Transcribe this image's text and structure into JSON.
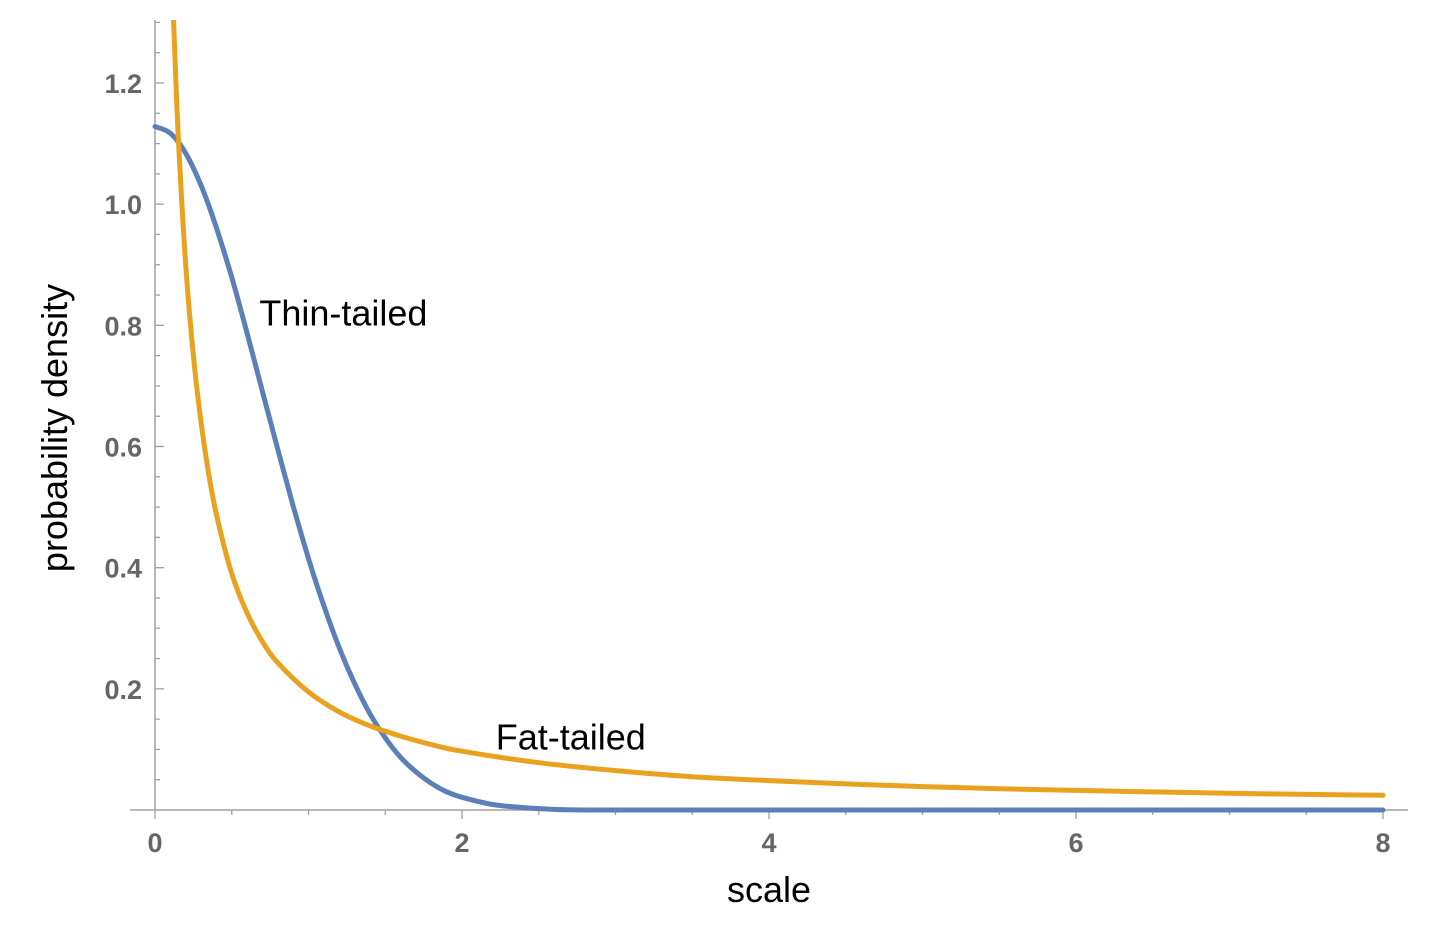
{
  "chart_data": {
    "type": "line",
    "title": "",
    "xlabel": "scale",
    "ylabel": "probability density",
    "xlim": [
      0,
      8
    ],
    "ylim": [
      0,
      1.3
    ],
    "x_ticks": [
      0,
      2,
      4,
      6,
      8
    ],
    "x_tick_labels": [
      "0",
      "2",
      "4",
      "6",
      "8"
    ],
    "y_ticks": [
      0.2,
      0.4,
      0.6,
      0.8,
      1.0,
      1.2
    ],
    "y_tick_labels": [
      "0.2",
      "0.4",
      "0.6",
      "0.8",
      "1.0",
      "1.2"
    ],
    "grid": false,
    "legend": "none",
    "series": [
      {
        "name": "Thin-tailed",
        "color": "#5b80b8",
        "x": [
          0,
          0.1,
          0.2,
          0.3,
          0.4,
          0.5,
          0.6,
          0.7,
          0.8,
          0.9,
          1.0,
          1.1,
          1.2,
          1.3,
          1.4,
          1.5,
          1.6,
          1.7,
          1.8,
          1.9,
          2.0,
          2.2,
          2.4,
          2.6,
          2.8,
          3.0,
          4.0,
          5.0,
          6.0,
          7.0,
          8.0
        ],
        "y": [
          1.128,
          1.117,
          1.084,
          1.031,
          0.961,
          0.879,
          0.787,
          0.691,
          0.595,
          0.502,
          0.415,
          0.337,
          0.268,
          0.209,
          0.159,
          0.119,
          0.087,
          0.063,
          0.044,
          0.03,
          0.021,
          0.009,
          0.004,
          0.001,
          0.0,
          0.0,
          0.0,
          0.0,
          0.0,
          0.0,
          0.0
        ]
      },
      {
        "name": "Fat-tailed",
        "color": "#e8a21f",
        "x": [
          0.12,
          0.15,
          0.2,
          0.25,
          0.3,
          0.35,
          0.4,
          0.5,
          0.6,
          0.7,
          0.8,
          1.0,
          1.2,
          1.4,
          1.6,
          1.8,
          2.0,
          2.5,
          3.0,
          3.5,
          4.0,
          4.5,
          5.0,
          5.5,
          6.0,
          6.5,
          7.0,
          7.5,
          8.0
        ],
        "y": [
          1.31,
          1.12,
          0.9,
          0.75,
          0.64,
          0.555,
          0.488,
          0.39,
          0.325,
          0.278,
          0.243,
          0.195,
          0.162,
          0.139,
          0.122,
          0.108,
          0.097,
          0.078,
          0.065,
          0.055,
          0.0485,
          0.0431,
          0.0387,
          0.0352,
          0.0323,
          0.0298,
          0.0276,
          0.0258,
          0.0242
        ]
      }
    ],
    "annotations": [
      {
        "text": "Thin-tailed",
        "x": 0.68,
        "y": 0.8
      },
      {
        "text": "Fat-tailed",
        "x": 2.22,
        "y": 0.1
      }
    ]
  }
}
